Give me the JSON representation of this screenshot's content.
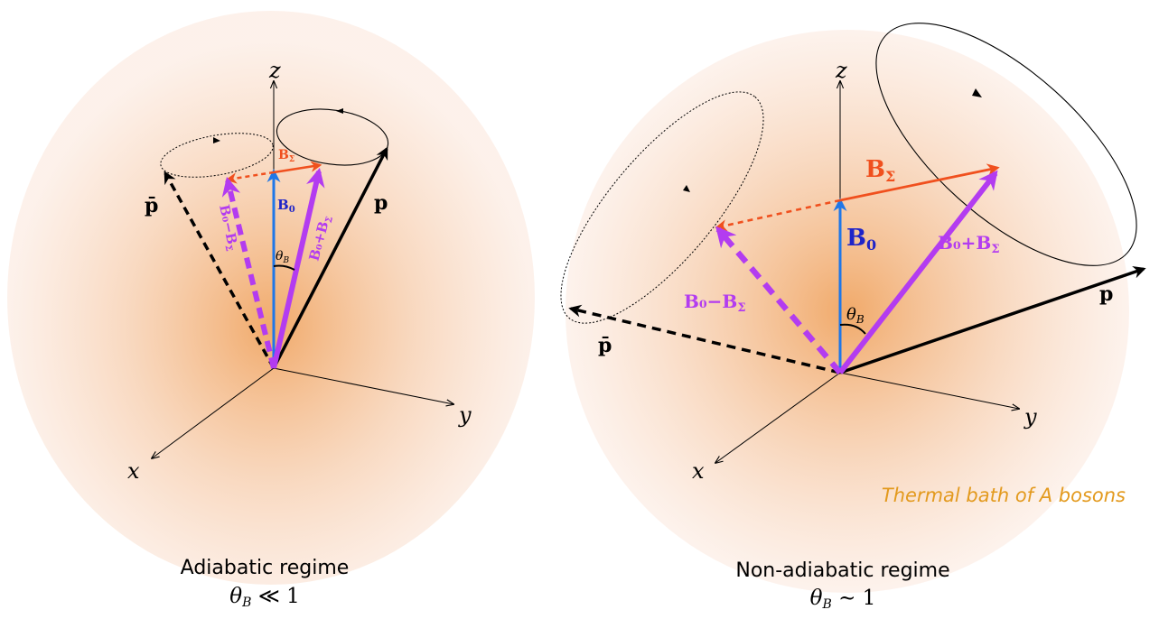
{
  "colors": {
    "blue": "#1f77e8",
    "red": "#f0501e",
    "purple": "#b33cf0",
    "black": "#000000",
    "bath": "#e39a1e",
    "sphere_core": "#f0a562",
    "sphere_edge": "#fbe6da"
  },
  "left": {
    "axis_x": "x",
    "axis_y": "y",
    "axis_z": "z",
    "label_p": "p",
    "label_pbar": "p̄",
    "label_B0": "B",
    "label_B0_sub": "0",
    "label_Bsigma": "B",
    "label_Bsigma_sub": "Σ",
    "label_sum": "B₀+B",
    "label_sum_sub": "Σ",
    "label_diff": "B₀−B",
    "label_diff_sub": "Σ",
    "label_theta": "θ",
    "label_theta_sub": "B",
    "caption_title": "Adiabatic regime",
    "caption_cond": "θ",
    "caption_cond_sub": "B",
    "caption_cond_rel": " ≪ 1"
  },
  "right": {
    "axis_x": "x",
    "axis_y": "y",
    "axis_z": "z",
    "label_p": "p",
    "label_pbar": "p̄",
    "label_B0": "B",
    "label_B0_sub": "0",
    "label_Bsigma": "B",
    "label_Bsigma_sub": "Σ",
    "label_sum": "B₀+B",
    "label_sum_sub": "Σ",
    "label_diff": "B₀−B",
    "label_diff_sub": "Σ",
    "label_theta": "θ",
    "label_theta_sub": "B",
    "caption_title": "Non-adiabatic regime",
    "caption_cond": "θ",
    "caption_cond_sub": "B",
    "caption_cond_rel": " ∼ 1",
    "bath_label": "Thermal bath of A bosons"
  }
}
